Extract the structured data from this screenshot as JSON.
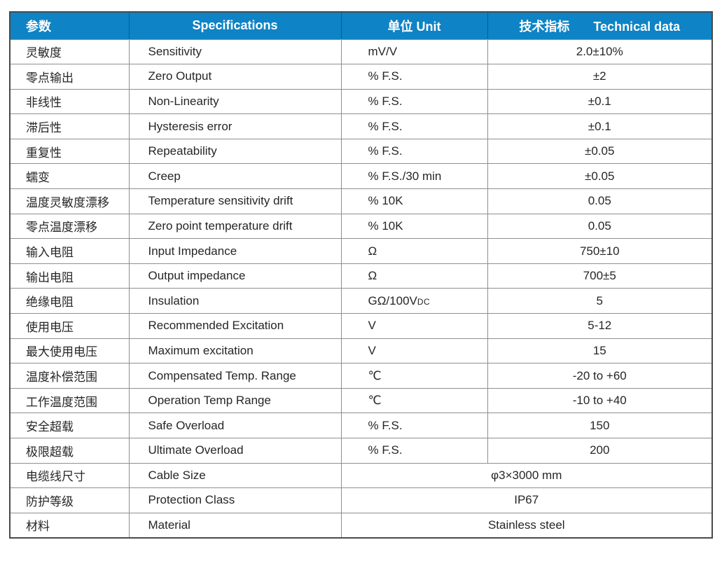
{
  "colors": {
    "header_bg": "#0e83c5",
    "header_text": "#ffffff",
    "border_outer": "#4a4a4a",
    "border_inner": "#8f8f8f",
    "text": "#262626"
  },
  "table": {
    "headers": {
      "param": "参数",
      "spec": "Specifications",
      "unit": "单位 Unit",
      "tech_zh": "技术指标",
      "tech_en": "Technical data"
    },
    "rows": [
      {
        "param": "灵敏度",
        "spec": "Sensitivity",
        "unit": "mV/V",
        "value": "2.0±10%"
      },
      {
        "param": "零点输出",
        "spec": "Zero Output",
        "unit": "% F.S.",
        "value": "±2"
      },
      {
        "param": "非线性",
        "spec": "Non-Linearity",
        "unit": "% F.S.",
        "value": "±0.1"
      },
      {
        "param": "滞后性",
        "spec": "Hysteresis error",
        "unit": "% F.S.",
        "value": "±0.1"
      },
      {
        "param": "重复性",
        "spec": "Repeatability",
        "unit": "% F.S.",
        "value": "±0.05"
      },
      {
        "param": "蠕变",
        "spec": "Creep",
        "unit": "% F.S./30 min",
        "value": "±0.05"
      },
      {
        "param": "温度灵敏度漂移",
        "spec": "Temperature sensitivity drift",
        "unit": "% 10K",
        "value": "0.05"
      },
      {
        "param": "零点温度漂移",
        "spec": "Zero point temperature drift",
        "unit": "% 10K",
        "value": "0.05"
      },
      {
        "param": "输入电阻",
        "spec": "Input Impedance",
        "unit": "Ω",
        "value": "750±10"
      },
      {
        "param": "输出电阻",
        "spec": "Output impedance",
        "unit": "Ω",
        "value": "700±5"
      },
      {
        "param": "绝缘电阻",
        "spec": "Insulation",
        "unit": "GΩ/100V",
        "unit_sub": "DC",
        "value": "5"
      },
      {
        "param": "使用电压",
        "spec": "Recommended Excitation",
        "unit": "V",
        "value": "5-12"
      },
      {
        "param": "最大使用电压",
        "spec": "Maximum excitation",
        "unit": "V",
        "value": "15"
      },
      {
        "param": "温度补偿范围",
        "spec": "Compensated Temp. Range",
        "unit": "℃",
        "value": "-20 to +60"
      },
      {
        "param": "工作温度范围",
        "spec": "Operation Temp Range",
        "unit": "℃",
        "value": "-10 to +40"
      },
      {
        "param": "安全超载",
        "spec": "Safe Overload",
        "unit": "% F.S.",
        "value": "150"
      },
      {
        "param": "极限超载",
        "spec": "Ultimate Overload",
        "unit": "% F.S.",
        "value": "200"
      },
      {
        "param": "电缆线尺寸",
        "spec": "Cable Size",
        "merged": true,
        "value": "φ3×3000 mm"
      },
      {
        "param": "防护等级",
        "spec": "Protection Class",
        "merged": true,
        "value": "IP67"
      },
      {
        "param": "材料",
        "spec": "Material",
        "merged": true,
        "value": "Stainless steel"
      }
    ]
  }
}
